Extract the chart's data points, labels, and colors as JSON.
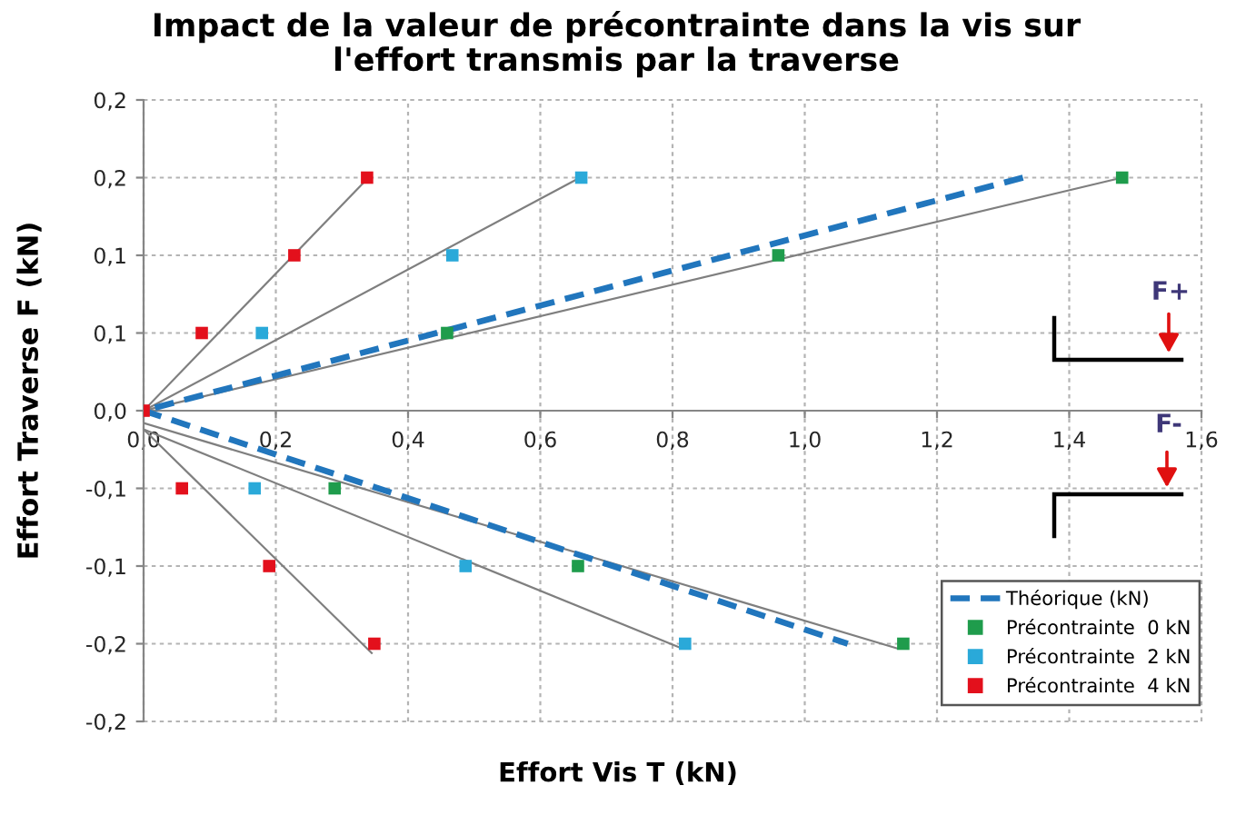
{
  "chart_data": {
    "type": "scatter",
    "title": "Impact de la valeur de précontrainte dans la vis sur\nl'effort transmis par la traverse",
    "xlabel": "Effort Vis T (kN)",
    "ylabel": "Effort Traverse F (kN)",
    "xlim": [
      0,
      1.6
    ],
    "xticks": [
      {
        "value": 0,
        "label": "0,0"
      },
      {
        "value": 0.2,
        "label": "0,2"
      },
      {
        "value": 0.4,
        "label": "0,4"
      },
      {
        "value": 0.6,
        "label": "0,6"
      },
      {
        "value": 0.8,
        "label": "0,8"
      },
      {
        "value": 1.0,
        "label": "1,0"
      },
      {
        "value": 1.2,
        "label": "1,2"
      },
      {
        "value": 1.4,
        "label": "1,4"
      },
      {
        "value": 1.6,
        "label": "1,6"
      }
    ],
    "ylim": [
      -0.2,
      0.2
    ],
    "yticks": [
      {
        "value": -0.2,
        "label": "-0,2"
      },
      {
        "value": -0.15,
        "label": "-0,2"
      },
      {
        "value": -0.1,
        "label": "-0,1"
      },
      {
        "value": -0.05,
        "label": "-0,1"
      },
      {
        "value": 0,
        "label": "0,0"
      },
      {
        "value": 0.05,
        "label": "0,1"
      },
      {
        "value": 0.1,
        "label": "0,1"
      },
      {
        "value": 0.15,
        "label": "0,2"
      },
      {
        "value": 0.2,
        "label": "0,2"
      }
    ],
    "grid": true,
    "legend": "bottom right",
    "marker": "square",
    "annotations": [
      "F+",
      "F-"
    ],
    "series": [
      {
        "type": "line",
        "color": "#7f7f7f",
        "line_style": "solid",
        "marker": "none",
        "x": [
          0,
          1.48
        ],
        "values": [
          0,
          0.15
        ]
      },
      {
        "type": "line",
        "color": "#7f7f7f",
        "line_style": "solid",
        "marker": "none",
        "x": [
          0,
          0.66
        ],
        "values": [
          0,
          0.15
        ]
      },
      {
        "type": "line",
        "color": "#7f7f7f",
        "line_style": "solid",
        "marker": "none",
        "x": [
          0,
          0.34
        ],
        "values": [
          0,
          0.15
        ]
      },
      {
        "type": "line",
        "color": "#7f7f7f",
        "line_style": "solid",
        "marker": "none",
        "x": [
          0,
          1.14
        ],
        "values": [
          -0.008,
          -0.153
        ]
      },
      {
        "type": "line",
        "color": "#7f7f7f",
        "line_style": "solid",
        "marker": "none",
        "x": [
          0,
          0.814
        ],
        "values": [
          -0.012,
          -0.153
        ]
      },
      {
        "type": "line",
        "color": "#7f7f7f",
        "line_style": "solid",
        "marker": "none",
        "x": [
          0,
          0.345
        ],
        "values": [
          -0.012,
          -0.156
        ]
      },
      {
        "name": "Théorique (kN)",
        "type": "line",
        "color": "#2176bd",
        "line_style": "dashed",
        "marker": "none",
        "x": [
          1.33,
          0,
          1.065
        ],
        "values": [
          0.15,
          0,
          -0.15
        ]
      },
      {
        "name": "Précontrainte  0 kN",
        "color": "#1f9c4c",
        "x": [
          0.459,
          0.96,
          1.48,
          0.289,
          0.657,
          1.149
        ],
        "values": [
          0.05,
          0.1,
          0.15,
          -0.05,
          -0.1,
          -0.15
        ]
      },
      {
        "name": "Précontrainte  2 kN",
        "color": "#2aa9d9",
        "x": [
          0.179,
          0.467,
          0.662,
          0.168,
          0.487,
          0.819
        ],
        "values": [
          0.05,
          0.1,
          0.15,
          -0.05,
          -0.1,
          -0.15
        ]
      },
      {
        "name": "Précontrainte  4 kN",
        "color": "#e3101c",
        "x": [
          0,
          0.088,
          0.228,
          0.338,
          0.058,
          0.19,
          0.349
        ],
        "values": [
          0,
          0.05,
          0.1,
          0.15,
          -0.05,
          -0.1,
          -0.15
        ]
      }
    ]
  }
}
